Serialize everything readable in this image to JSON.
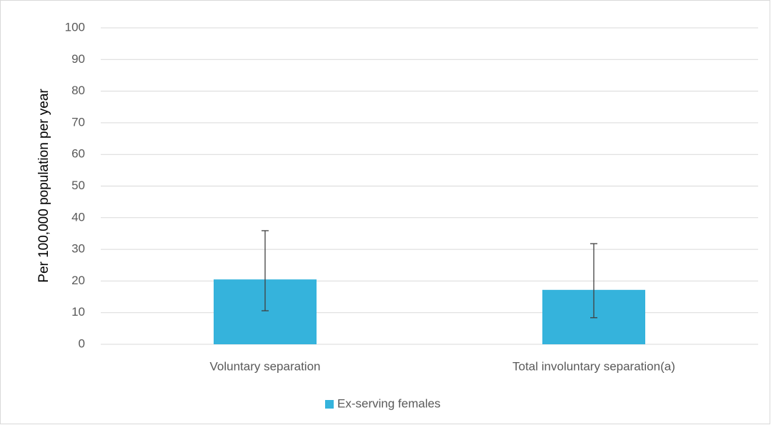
{
  "chart_data": {
    "type": "bar",
    "y_label": "Per 100,000 population per year",
    "categories": [
      "Voluntary separation",
      "Total involuntary separation(a)"
    ],
    "series": [
      {
        "name": "Ex-serving females",
        "color": "#35b3dc",
        "values": [
          20.5,
          17.2
        ],
        "ci_lower": [
          10.6,
          8.4
        ],
        "ci_upper": [
          35.9,
          31.8
        ]
      }
    ],
    "ylim": [
      0,
      100
    ],
    "yticks": [
      0,
      10,
      20,
      30,
      40,
      50,
      60,
      70,
      80,
      90,
      100
    ],
    "grid": true,
    "legend": "bottom"
  }
}
